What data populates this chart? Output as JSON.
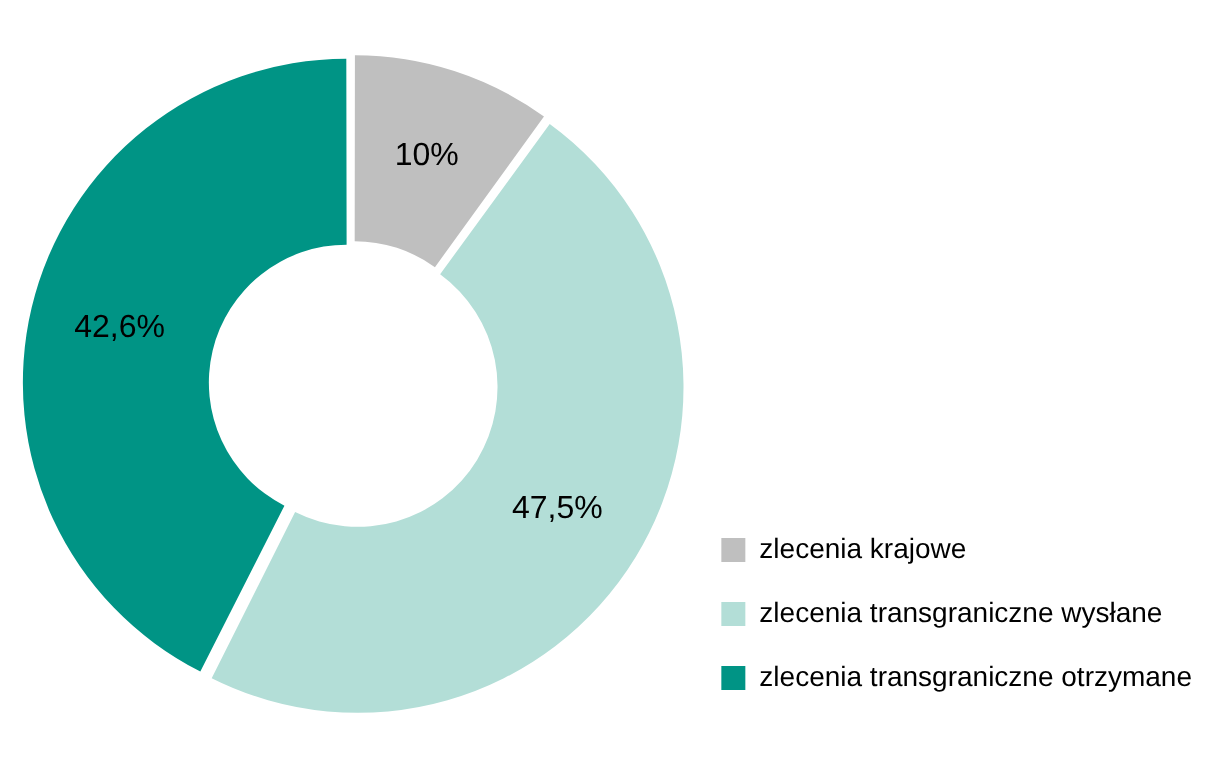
{
  "chart_data": {
    "type": "donut",
    "categories": [
      "zlecenia krajowe",
      "zlecenia transgraniczne wysłane",
      "zlecenia transgraniczne otrzymane"
    ],
    "values": [
      10,
      47.5,
      42.6
    ],
    "value_labels": [
      "10%",
      "47,5%",
      "42,6%"
    ],
    "colors": [
      "#bfbfbf",
      "#b3ded7",
      "#009485"
    ],
    "legend": "bottom right"
  }
}
